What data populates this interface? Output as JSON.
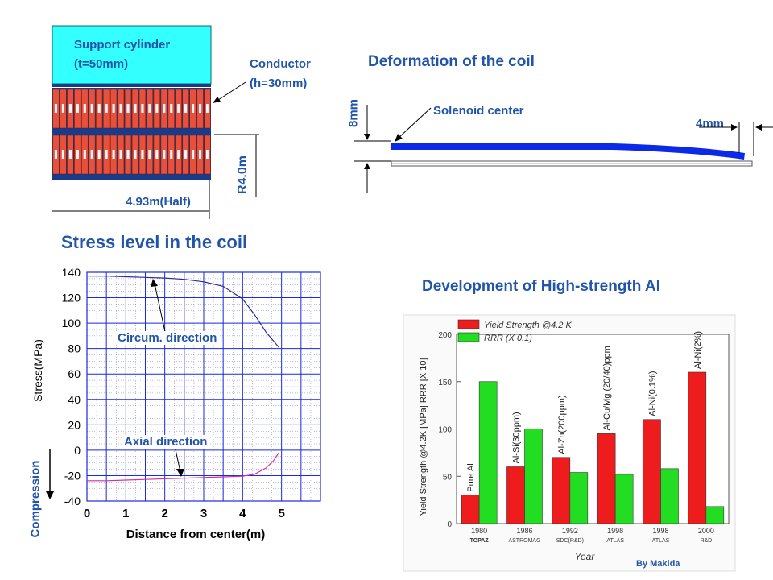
{
  "coil_section": {
    "support_label_1": "Support cylinder",
    "support_label_2": "(t=50mm)",
    "conductor_label_1": "Conductor",
    "conductor_label_2": "(h=30mm)",
    "radius_label": "R4.0m",
    "half_length_label": "4.93m(Half)"
  },
  "deformation": {
    "title": "Deformation of the coil",
    "center_label": "Solenoid center",
    "vertical_label": "8mm",
    "end_label": "4mm"
  },
  "stress_chart": {
    "title": "Stress level in the coil",
    "circum_label": "Circum. direction",
    "axial_label": "Axial direction",
    "compression_label": "Compression"
  },
  "strength_chart": {
    "title": "Development of High-strength Al",
    "credit": "By Makida"
  },
  "chart_data": [
    {
      "type": "line",
      "title": "Stress level in the coil",
      "xlabel": "Distance from center(m)",
      "ylabel": "Stress(MPa)",
      "xlim": [
        0,
        6
      ],
      "ylim": [
        -40,
        140
      ],
      "xticks": [
        "0",
        "1",
        "2",
        "3",
        "4",
        "5"
      ],
      "yticks": [
        "140",
        "120",
        "100",
        "80",
        "60",
        "40",
        "20",
        "0",
        "-20",
        "-40"
      ],
      "grid": true,
      "series": [
        {
          "name": "Circum. direction",
          "color": "#2a2aa0",
          "x": [
            0,
            0.5,
            1,
            1.5,
            2,
            2.5,
            3,
            3.5,
            4,
            4.3,
            4.6,
            4.93
          ],
          "y": [
            137,
            137,
            136.5,
            136,
            135.5,
            134.5,
            132.5,
            129,
            119,
            107,
            93,
            81
          ]
        },
        {
          "name": "Axial direction",
          "color": "#cc33aa",
          "x": [
            0,
            0.5,
            1,
            1.5,
            2,
            2.5,
            3,
            3.5,
            4,
            4.3,
            4.6,
            4.8,
            4.93
          ],
          "y": [
            -24,
            -24,
            -23.5,
            -23,
            -22.5,
            -22,
            -21.5,
            -21,
            -20.5,
            -19,
            -14,
            -8,
            -2
          ]
        }
      ]
    },
    {
      "type": "bar",
      "title": "Development of High-strength Al",
      "ylabel": "Yield Strength @4.2K [MPa] RRR [X 10]",
      "xlabel": "Year",
      "ylim": [
        0,
        200
      ],
      "yticks": [
        "0",
        "50",
        "100",
        "150",
        "200"
      ],
      "categories": [
        "1980",
        "1986",
        "1992",
        "1998",
        "1998",
        "2000"
      ],
      "category_sublabels": [
        "TOPAZ",
        "ASTROMAG",
        "SDC(R&D)",
        "ATLAS",
        "ATLAS",
        "R&D"
      ],
      "bar_annotations": [
        "Pure Al",
        "Al-Si(30ppm)",
        "Al-Zn(200ppm)",
        "Al-Cu/Mg (20/40)ppm",
        "Al-Ni(0.1%)",
        "Al-Ni(2%)"
      ],
      "series": [
        {
          "name": "Yield Strength @4.2 K",
          "color": "#ee1c1c",
          "values": [
            30,
            60,
            70,
            95,
            110,
            160
          ]
        },
        {
          "name": "RRR (X 0.1)",
          "color": "#22dd22",
          "values": [
            150,
            100,
            54,
            52,
            58,
            18
          ]
        }
      ]
    }
  ]
}
